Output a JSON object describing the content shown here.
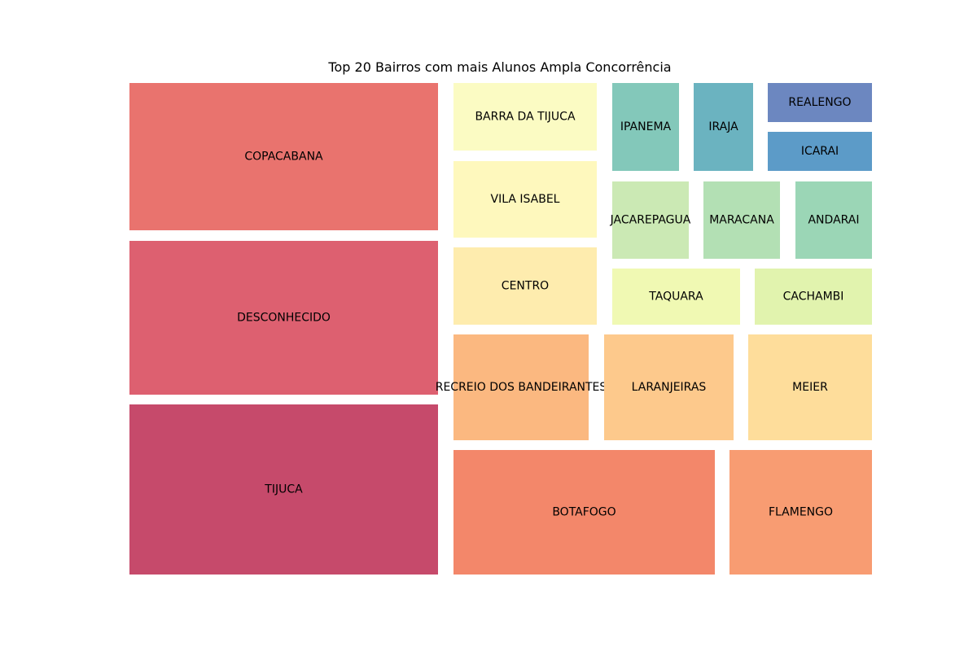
{
  "chart_data": {
    "type": "treemap",
    "title": "Top 20 Bairros com mais Alunos Ampla Concorrência",
    "palette": "Spectral",
    "items": [
      {
        "label": "TIJUCA",
        "value": 1100,
        "color": "#c64a6b"
      },
      {
        "label": "DESCONHECIDO",
        "value": 1000,
        "color": "#dd6070"
      },
      {
        "label": "COPACABANA",
        "value": 960,
        "color": "#e9736e"
      },
      {
        "label": "BOTAFOGO",
        "value": 690,
        "color": "#f3876a"
      },
      {
        "label": "FLAMENGO",
        "value": 380,
        "color": "#f89c72"
      },
      {
        "label": "RECREIO DOS BANDEIRANTES",
        "value": 300,
        "color": "#fbb880"
      },
      {
        "label": "LARANJEIRAS",
        "value": 285,
        "color": "#fdc98c"
      },
      {
        "label": "MEIER",
        "value": 272,
        "color": "#fedd9b"
      },
      {
        "label": "CENTRO",
        "value": 233,
        "color": "#feecae"
      },
      {
        "label": "VILA ISABEL",
        "value": 228,
        "color": "#fef8bd"
      },
      {
        "label": "BARRA DA TIJUCA",
        "value": 200,
        "color": "#fbfbc3"
      },
      {
        "label": "TAQUARA",
        "value": 163,
        "color": "#f0f9b3"
      },
      {
        "label": "CACHAMBI",
        "value": 148,
        "color": "#e1f3ae"
      },
      {
        "label": "JACAREPAGUA",
        "value": 134,
        "color": "#cbe9b4"
      },
      {
        "label": "MARACANA",
        "value": 133,
        "color": "#b3e0b4"
      },
      {
        "label": "ANDARAI",
        "value": 132,
        "color": "#9bd6b6"
      },
      {
        "label": "IPANEMA",
        "value": 134,
        "color": "#83c8ba"
      },
      {
        "label": "IRAJA",
        "value": 116,
        "color": "#6bb3c0"
      },
      {
        "label": "ICARAI",
        "value": 70,
        "color": "#5c9bc8"
      },
      {
        "label": "REALENGO",
        "value": 67,
        "color": "#6c87c0"
      }
    ]
  }
}
